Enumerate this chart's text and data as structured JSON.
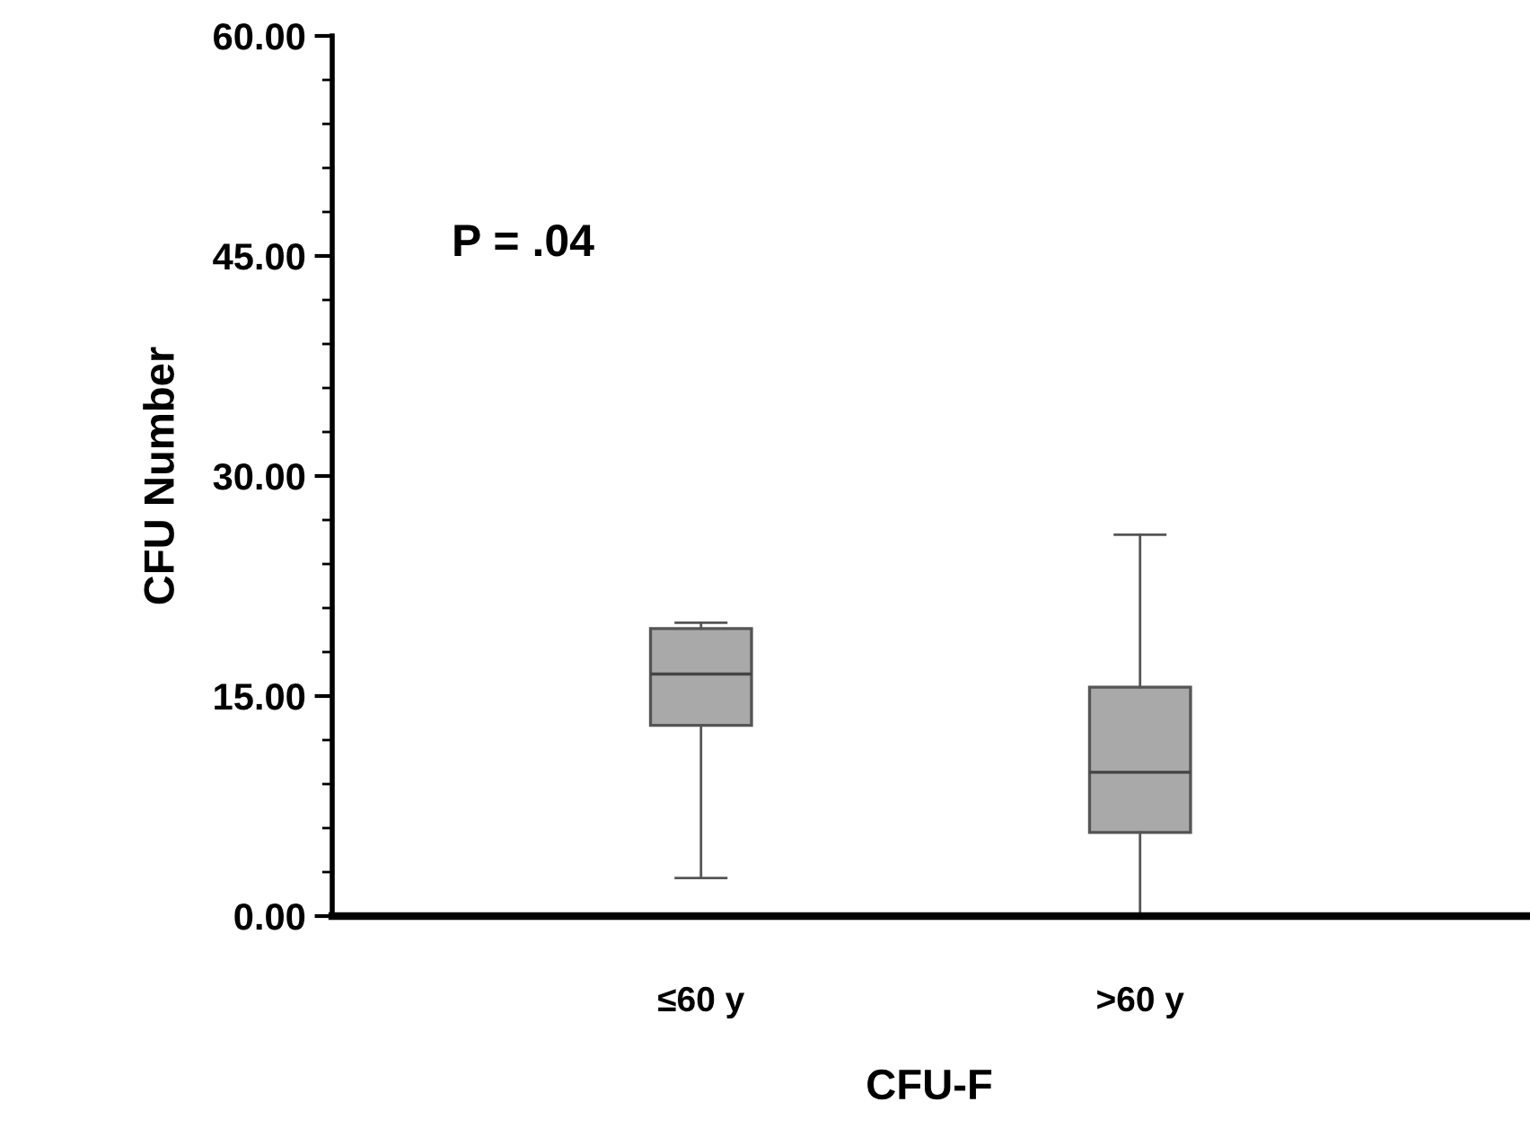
{
  "chart_data": {
    "type": "box",
    "xlabel": "CFU-F",
    "ylabel": "CFU Number",
    "categories": [
      "≤60 y",
      ">60 y"
    ],
    "boxes": [
      {
        "low": 2.6,
        "q1": 13.0,
        "median": 16.5,
        "q3": 19.6,
        "high": 20.0
      },
      {
        "low": 0.0,
        "q1": 5.7,
        "median": 9.8,
        "q3": 15.6,
        "high": 26.0
      }
    ],
    "color": "#a9a9a9",
    "ylim": [
      0,
      60
    ],
    "yticks": [
      {
        "value": 0,
        "label": "0.00"
      },
      {
        "value": 15,
        "label": "15.00"
      },
      {
        "value": 30,
        "label": "30.00"
      },
      {
        "value": 45,
        "label": "45.00"
      },
      {
        "value": 60,
        "label": "60.00"
      }
    ],
    "grid": false,
    "legend": false,
    "annotations": [
      "P = .04"
    ]
  }
}
